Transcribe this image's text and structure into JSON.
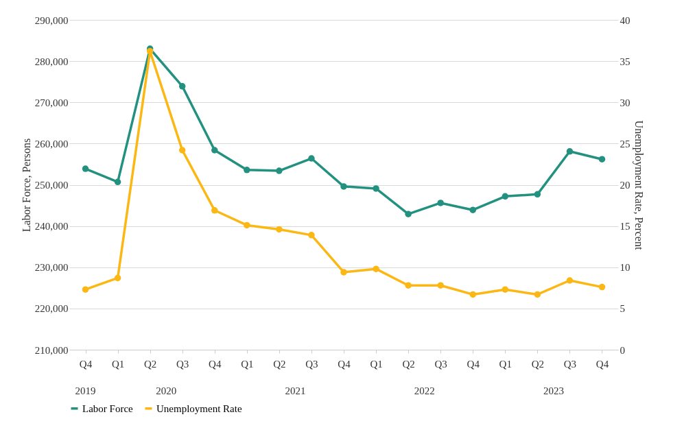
{
  "chart_data": {
    "type": "line",
    "categories": [
      "Q4",
      "Q1",
      "Q2",
      "Q3",
      "Q4",
      "Q1",
      "Q2",
      "Q3",
      "Q4",
      "Q1",
      "Q2",
      "Q3",
      "Q4",
      "Q1",
      "Q2",
      "Q3",
      "Q4"
    ],
    "series": [
      {
        "name": "Labor Force",
        "color": "#23917f",
        "values": [
          253900,
          250700,
          283000,
          273900,
          258400,
          253600,
          253400,
          256400,
          249600,
          249100,
          242900,
          245600,
          243900,
          247200,
          247700,
          258100,
          256200
        ]
      },
      {
        "name": "Unemployment Rate",
        "color": "#fbb713",
        "axis": "y2",
        "values": [
          7.3,
          8.7,
          36.2,
          24.2,
          16.9,
          15.1,
          14.6,
          13.9,
          9.4,
          9.8,
          7.8,
          7.8,
          6.7,
          7.3,
          6.7,
          8.4,
          7.6
        ]
      }
    ],
    "ylabel": "Labor Force, Persons",
    "y2label": "Unemployment Rate, Percent",
    "ylim": [
      210000,
      290000
    ],
    "yticks": [
      {
        "value": 210000,
        "label": "210,000"
      },
      {
        "value": 220000,
        "label": "220,000"
      },
      {
        "value": 230000,
        "label": "230,000"
      },
      {
        "value": 240000,
        "label": "240,000"
      },
      {
        "value": 250000,
        "label": "250,000"
      },
      {
        "value": 260000,
        "label": "260,000"
      },
      {
        "value": 270000,
        "label": "270,000"
      },
      {
        "value": 280000,
        "label": "280,000"
      },
      {
        "value": 290000,
        "label": "290,000"
      }
    ],
    "y2lim": [
      0,
      40
    ],
    "y2ticks": [
      0,
      5,
      10,
      15,
      20,
      25,
      30,
      35,
      40
    ],
    "annotations": [
      "2019",
      "2020",
      "2021",
      "2022",
      "2023"
    ],
    "grid": "y",
    "legend": "bottom",
    "marker": "circle",
    "line_style": "solid"
  }
}
